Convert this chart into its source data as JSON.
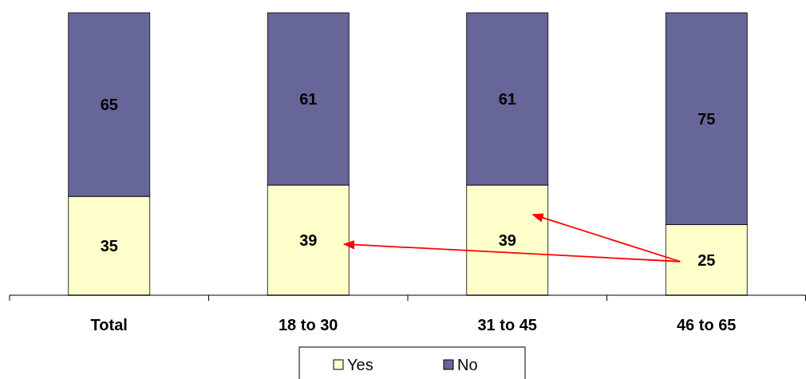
{
  "chart_data": {
    "type": "bar",
    "stacked": true,
    "categories": [
      "Total",
      "18 to 30",
      "31 to 45",
      "46 to 65"
    ],
    "series": [
      {
        "name": "Yes",
        "color": "#ffffcc",
        "values": [
          35,
          39,
          39,
          25
        ]
      },
      {
        "name": "No",
        "color": "#666699",
        "values": [
          65,
          61,
          61,
          75
        ]
      }
    ],
    "data_labels": true,
    "legend": "bottom"
  }
}
